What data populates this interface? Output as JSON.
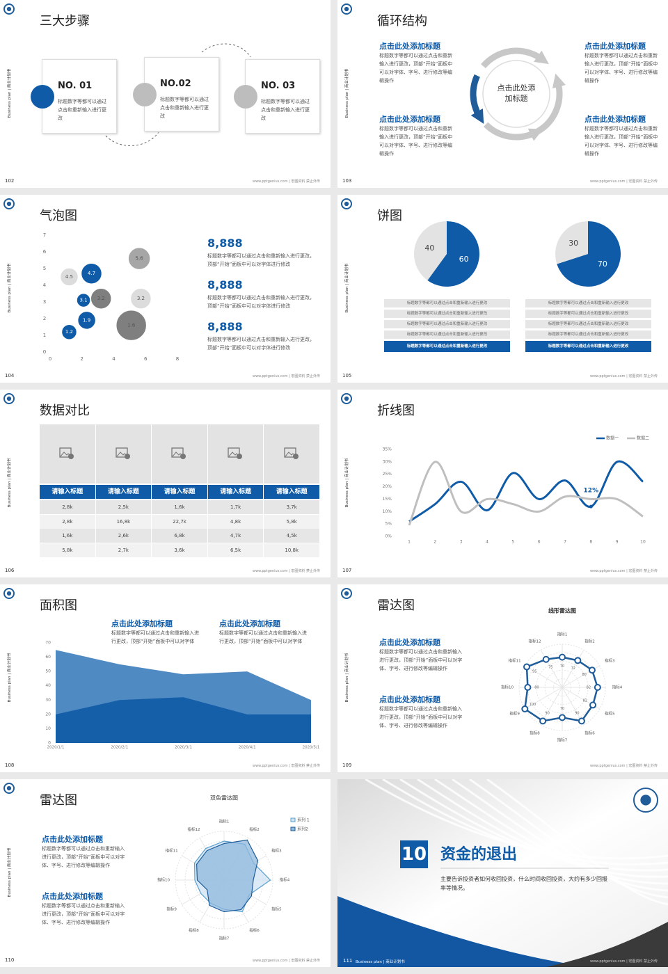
{
  "common": {
    "side": "Business plan | 商业计划书",
    "footer": "www.pptgenius.com | 宏图资料 禁止外传"
  },
  "slides": [
    {
      "page": "102",
      "title": "三大步骤",
      "steps": [
        {
          "no": "NO. 01",
          "text": "标题数字等都可以通过点击和重新输入进行更改"
        },
        {
          "no": "NO.02",
          "text": "标题数字等都可以通过点击和重新输入进行更改"
        },
        {
          "no": "NO. 03",
          "text": "标题数字等都可以通过点击和重新输入进行更改"
        }
      ]
    },
    {
      "page": "103",
      "title": "循环结构",
      "center": "点击此处添加标题",
      "blocks": [
        {
          "heading": "点击此处添加标题",
          "text": "标题数字等都可以通过点击和重新输入进行更改，顶部“开始”面板中可以对字体、字号、进行修改等编辑操作"
        },
        {
          "heading": "点击此处添加标题",
          "text": "标题数字等都可以通过点击和重新输入进行更改，顶部“开始”面板中可以对字体、字号、进行修改等编辑操作"
        },
        {
          "heading": "点击此处添加标题",
          "text": "标题数字等都可以通过点击和重新输入进行更改，顶部“开始”面板中可以对字体、字号、进行修改等编辑操作"
        },
        {
          "heading": "点击此处添加标题",
          "text": "标题数字等都可以通过点击和重新输入进行更改，顶部“开始”面板中可以对字体、字号、进行修改等编辑操作"
        }
      ]
    },
    {
      "page": "104",
      "title": "气泡图",
      "chart_data": {
        "type": "bubble",
        "xlim": [
          0,
          8
        ],
        "xticks": [
          0,
          2,
          4,
          6,
          8
        ],
        "ylim": [
          0,
          7
        ],
        "yticks": [
          0,
          1,
          2,
          3,
          4,
          5,
          6,
          7
        ],
        "series": [
          {
            "color": "#0f5ba7",
            "x": [
              1.2,
              2.3,
              2.1,
              2.6
            ],
            "values": [
              1.2,
              1.9,
              3.1,
              4.7
            ],
            "sizes": [
              11,
              13,
              10,
              15
            ]
          },
          {
            "color": "#7f7f7f",
            "x": [
              3.2,
              5.1
            ],
            "values": [
              3.2,
              1.6
            ],
            "sizes": [
              15,
              22
            ]
          },
          {
            "color": "#a6a6a6",
            "x": [
              5.6
            ],
            "values": [
              5.6
            ],
            "sizes": [
              16
            ]
          },
          {
            "color": "#dcdcdc",
            "x": [
              1.2,
              5.7
            ],
            "values": [
              4.5,
              3.2
            ],
            "sizes": [
              13,
              15
            ]
          }
        ]
      },
      "stats": [
        {
          "value": "8,888",
          "text": "标题数字等都可以通过点击和重新输入进行更改，顶部“开始”面板中可以对字体进行修改"
        },
        {
          "value": "8,888",
          "text": "标题数字等都可以通过点击和重新输入进行更改，顶部“开始”面板中可以对字体进行修改"
        },
        {
          "value": "8,888",
          "text": "标题数字等都可以通过点击和重新输入进行更改，顶部“开始”面板中可以对字体进行修改"
        }
      ]
    },
    {
      "page": "105",
      "title": "饼图",
      "chart_data": [
        {
          "type": "pie",
          "values": [
            60,
            40
          ],
          "colors": [
            "#0f5ba7",
            "#e3e3e3"
          ]
        },
        {
          "type": "pie",
          "values": [
            70,
            30
          ],
          "colors": [
            "#0f5ba7",
            "#e3e3e3"
          ]
        }
      ],
      "lists": [
        [
          "标题数字等都可以通过点击和重新输入进行更改",
          "标题数字等都可以通过点击和重新输入进行更改",
          "标题数字等都可以通过点击和重新输入进行更改",
          "标题数字等都可以通过点击和重新输入进行更改",
          "标题数字等都可以通过点击和重新输入进行更改"
        ],
        [
          "标题数字等都可以通过点击和重新输入进行更改",
          "标题数字等都可以通过点击和重新输入进行更改",
          "标题数字等都可以通过点击和重新输入进行更改",
          "标题数字等都可以通过点击和重新输入进行更改",
          "标题数字等都可以通过点击和重新输入进行更改"
        ]
      ]
    },
    {
      "page": "106",
      "title": "数据对比",
      "table": {
        "header": [
          "请输入标题",
          "请输入标题",
          "请输入标题",
          "请输入标题",
          "请输入标题"
        ],
        "rows": [
          [
            "2,8k",
            "2,5k",
            "1,6k",
            "1,7k",
            "3,7k"
          ],
          [
            "2,8k",
            "16,8k",
            "22,7k",
            "4,8k",
            "5,8k"
          ],
          [
            "1,6k",
            "2,6k",
            "6,8k",
            "4,7k",
            "4,5k"
          ],
          [
            "5,8k",
            "2,7k",
            "3,6k",
            "6,5k",
            "10,8k"
          ]
        ]
      }
    },
    {
      "page": "107",
      "title": "折线图",
      "chart_data": {
        "type": "line",
        "x": [
          1,
          2,
          3,
          4,
          5,
          6,
          7,
          8,
          9,
          10
        ],
        "xlim": [
          1,
          10
        ],
        "xticks": [
          1,
          2,
          3,
          4,
          5,
          6,
          7,
          8,
          9,
          10
        ],
        "ylim": [
          0,
          35
        ],
        "yticks": [
          {
            "value": 0,
            "label": "0%"
          },
          {
            "value": 5,
            "label": "5%"
          },
          {
            "value": 10,
            "label": "10%"
          },
          {
            "value": 15,
            "label": "15%"
          },
          {
            "value": 20,
            "label": "20%"
          },
          {
            "value": 25,
            "label": "25%"
          },
          {
            "value": 30,
            "label": "30%"
          },
          {
            "value": 35,
            "label": "35%"
          }
        ],
        "legend": "top-right",
        "series": [
          {
            "name": "数据一",
            "color": "#0f5ba7",
            "values": [
              6,
              13,
              22,
              10.5,
              25.5,
              15,
              22.5,
              12,
              30,
              22
            ],
            "value_labels": [
              null,
              null,
              null,
              null,
              null,
              null,
              null,
              "12%",
              null,
              null
            ]
          },
          {
            "name": "数据二",
            "color": "#bfbfbf",
            "values": [
              4.5,
              30,
              10,
              15,
              13,
              10,
              16,
              15,
              15,
              8
            ]
          }
        ]
      }
    },
    {
      "page": "108",
      "title": "面积图",
      "chart_data": {
        "type": "area",
        "categories": [
          "2020/1/1",
          "2020/2/1",
          "2020/3/1",
          "2020/4/1",
          "2020/5/1"
        ],
        "ylim": [
          0,
          70
        ],
        "yticks": [
          0,
          10,
          20,
          30,
          40,
          50,
          60,
          70
        ],
        "series": [
          {
            "color": "#4f8ac3",
            "values": [
              65,
              55,
              48,
              50,
              30
            ]
          },
          {
            "color": "#155ea8",
            "values": [
              20,
              30,
              32,
              20,
              20
            ]
          }
        ]
      },
      "blocks": [
        {
          "heading": "点击此处添加标题",
          "text": "标题数字等都可以通过点击和重新输入进行更改，顶部“开始”面板中可以对字体"
        },
        {
          "heading": "点击此处添加标题",
          "text": "标题数字等都可以通过点击和重新输入进行更改，顶部“开始”面板中可以对字体"
        }
      ]
    },
    {
      "page": "109",
      "title": "雷达图",
      "chart_data": {
        "type": "radar",
        "title": "线形雷达图",
        "categories": [
          "指标1",
          "指标2",
          "指标3",
          "指标4",
          "指标5",
          "指标6",
          "指标7",
          "指标8",
          "指标9",
          "指标10",
          "指标11",
          "指标12"
        ],
        "rlim": [
          0,
          100
        ],
        "series": [
          {
            "color": "#1f5c99",
            "values": [
              70,
              72,
              80,
              82,
              82,
              90,
              70,
              90,
              100,
              80,
              95,
              75
            ]
          }
        ]
      },
      "blocks": [
        {
          "heading": "点击此处添加标题",
          "text": "标题数字等都可以通过点击和重新输入进行更改，顶部“开始”面板中可以对字体、字号、进行修改等编辑操作"
        },
        {
          "heading": "点击此处添加标题",
          "text": "标题数字等都可以通过点击和重新输入进行更改，顶部“开始”面板中可以对字体、字号、进行修改等编辑操作"
        }
      ]
    },
    {
      "page": "110",
      "title": "雷达图",
      "chart_data": {
        "type": "radar",
        "title": "双色雷达图",
        "categories": [
          "指标1",
          "指标2",
          "指标3",
          "指标4",
          "指标5",
          "指标6",
          "指标7",
          "指标8",
          "指标9",
          "指标10",
          "指标11",
          "指标12"
        ],
        "rlim": [
          0,
          100
        ],
        "legend": "top-right",
        "series": [
          {
            "name": "系列 1",
            "color": "#5aa0d0",
            "fill": "#cfe3f3",
            "values": [
              80,
              85,
              70,
              95,
              60,
              75,
              60,
              55,
              55,
              60,
              70,
              75
            ]
          },
          {
            "name": "系列2",
            "color": "#1f5c99",
            "fill": "#8db8dc",
            "values": [
              75,
              95,
              80,
              60,
              65,
              70,
              65,
              60,
              40,
              55,
              65,
              70
            ]
          }
        ]
      },
      "blocks": [
        {
          "heading": "点击此处添加标题",
          "text": "标题数字等都可以通过点击和重新输入进行更改，顶部“开始”面板中可以对字体、字号、进行修改等编辑操作"
        },
        {
          "heading": "点击此处添加标题",
          "text": "标题数字等都可以通过点击和重新输入进行更改，顶部“开始”面板中可以对字体、字号、进行修改等编辑操作"
        }
      ]
    },
    {
      "page": "111",
      "number": "10",
      "title": "资金的退出",
      "text": "主要告诉投资者如何收回投资，什么时间收回投资，大约有多少回报率等情况。"
    }
  ]
}
